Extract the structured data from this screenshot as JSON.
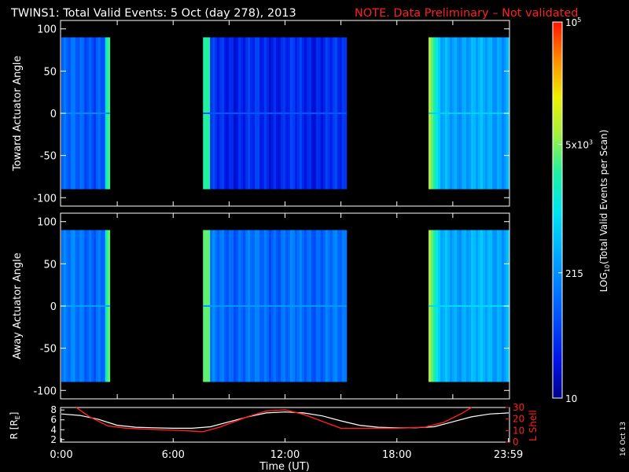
{
  "header": {
    "title": "TWINS1: Total Valid Events:  5 Oct (day 278), 2013",
    "note": "NOTE. Data Preliminary – Not validated"
  },
  "colors": {
    "background": "#000000",
    "axes": "#ffffff",
    "note": "#ff2020",
    "lshell": "#ff2020",
    "radius": "#ffffff"
  },
  "colorbar": {
    "label": "LOG10(Total Valid Events per Scan)",
    "label_base": "LOG",
    "label_sub": "10",
    "label_rest": "(Total Valid Events per Scan)",
    "ticks": [
      {
        "base": "10",
        "exp": "5",
        "value": 100000
      },
      {
        "base": "5x10",
        "exp": "3",
        "value": 5000
      },
      {
        "base": "215",
        "exp": "",
        "value": 215
      },
      {
        "base": "10",
        "exp": "",
        "value": 10
      }
    ],
    "range": [
      10,
      100000
    ],
    "scale": "log"
  },
  "footer": {
    "date_stamp": "16 Oct 13"
  },
  "chart_data": [
    {
      "type": "heatmap",
      "panel": "toward",
      "ylabel": "Toward Actuator Angle",
      "ylim": [
        -110,
        110
      ],
      "yticks": [
        "100",
        "50",
        "0",
        "-50",
        "-100"
      ],
      "y_tick_values": [
        100,
        50,
        0,
        -50,
        -100
      ],
      "x_range_hours": [
        0,
        24
      ],
      "angle_range": [
        -90,
        90
      ],
      "data_blocks_hours": [
        {
          "start": 0.0,
          "end": 2.6,
          "log_level": 1.95,
          "edge_log": 3.7
        },
        {
          "start": 7.6,
          "end": 15.3,
          "log_level": 1.55,
          "edge_log": 3.4
        },
        {
          "start": 19.7,
          "end": 24.0,
          "log_level": 2.5,
          "edge_log": 4.0
        }
      ]
    },
    {
      "type": "heatmap",
      "panel": "away",
      "ylabel": "Away Actuator Angle",
      "ylim": [
        -110,
        110
      ],
      "yticks": [
        "100",
        "50",
        "0",
        "-50",
        "-100"
      ],
      "y_tick_values": [
        100,
        50,
        0,
        -50,
        -100
      ],
      "x_range_hours": [
        0,
        24
      ],
      "angle_range": [
        -90,
        90
      ],
      "data_blocks_hours": [
        {
          "start": 0.0,
          "end": 2.6,
          "log_level": 2.1,
          "edge_log": 3.8
        },
        {
          "start": 7.6,
          "end": 15.3,
          "log_level": 2.05,
          "edge_log": 3.6
        },
        {
          "start": 19.7,
          "end": 24.0,
          "log_level": 2.55,
          "edge_log": 4.0
        }
      ]
    },
    {
      "type": "line",
      "panel": "ephemeris",
      "xlabel": "Time (UT)",
      "xticks": [
        "0:00",
        "6:00",
        "12:00",
        "18:00",
        "23:59"
      ],
      "x_tick_hours": [
        0,
        6,
        12,
        18,
        23.983
      ],
      "left_axis": {
        "label": "R [RE]",
        "label_base": "R [R",
        "label_sub": "E",
        "label_end": "]",
        "ticks": [
          "8",
          "6",
          "4",
          "2"
        ],
        "tick_values": [
          8,
          6,
          4,
          2
        ],
        "ylim": [
          1.5,
          8.5
        ]
      },
      "right_axis": {
        "label": "L Shell",
        "ticks": [
          "30",
          "20",
          "10",
          "0"
        ],
        "tick_values": [
          30,
          20,
          10,
          0
        ],
        "ylim": [
          0,
          30
        ]
      },
      "series": [
        {
          "axis": "left",
          "hours": [
            0,
            1,
            2,
            3,
            4,
            5,
            6,
            7,
            8,
            9,
            10,
            11,
            12,
            13,
            14,
            15,
            16,
            17,
            18,
            19,
            20,
            21,
            22,
            23,
            24
          ],
          "values": [
            7.2,
            6.9,
            6.1,
            4.9,
            4.5,
            4.4,
            4.3,
            4.3,
            4.6,
            5.6,
            6.6,
            7.4,
            7.6,
            7.4,
            6.8,
            5.8,
            4.9,
            4.5,
            4.4,
            4.4,
            4.6,
            5.6,
            6.6,
            7.2,
            7.4
          ]
        },
        {
          "axis": "right",
          "hours": [
            0.8,
            1.5,
            2.5,
            3.5,
            5,
            6.5,
            7.6,
            8.5,
            10,
            11,
            12,
            13,
            14,
            15,
            16,
            17,
            18,
            19.5,
            20.5,
            21.5,
            22
          ],
          "values": [
            30,
            22,
            14,
            12,
            11,
            10,
            9,
            13,
            22,
            27,
            28,
            24,
            18,
            12,
            12,
            12,
            12,
            13,
            17,
            25,
            30
          ]
        }
      ]
    }
  ]
}
